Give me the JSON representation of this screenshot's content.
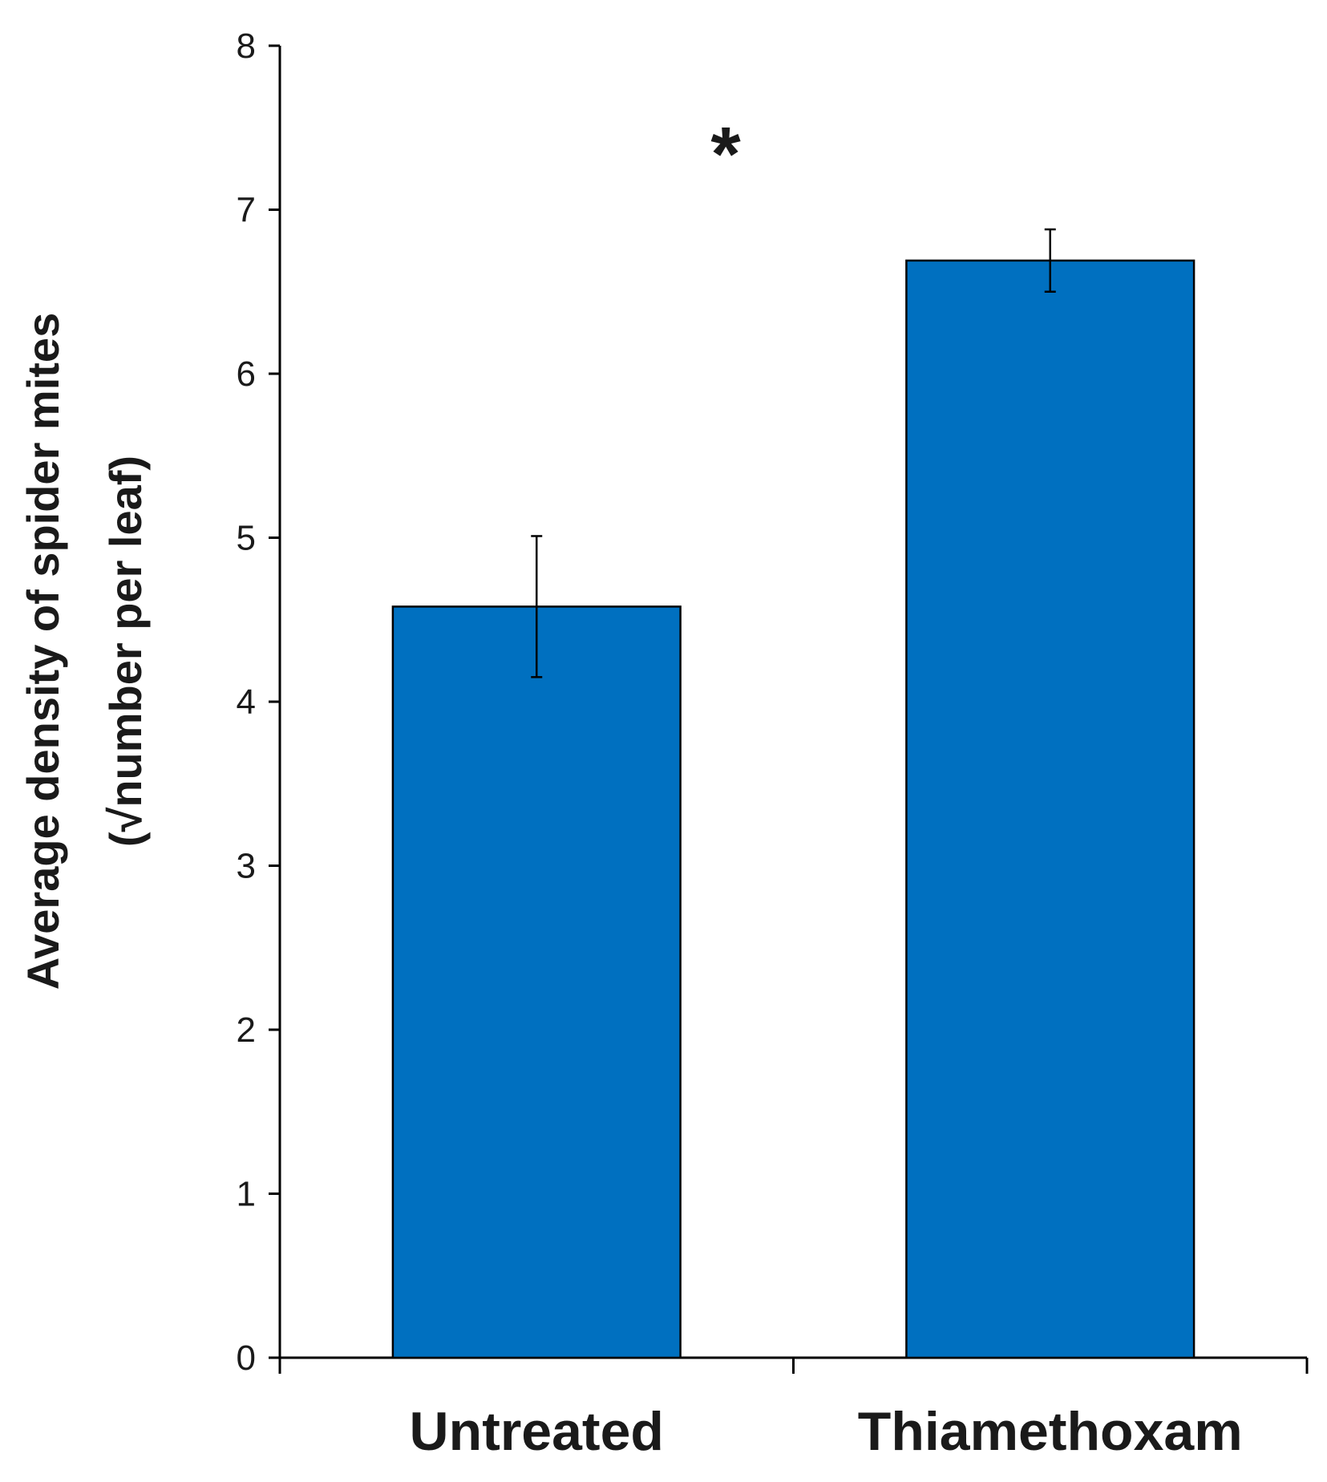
{
  "chart_data": {
    "type": "bar",
    "title": "",
    "xlabel": "",
    "ylabel_lines": [
      "Average density of spider mites",
      "(√number per leaf)"
    ],
    "categories": [
      "Untreated",
      "Thiamethoxam"
    ],
    "values": [
      4.58,
      6.69
    ],
    "error": [
      0.43,
      0.19
    ],
    "ylim": [
      0,
      8
    ],
    "yticks": [
      0,
      1,
      2,
      3,
      4,
      5,
      6,
      7,
      8
    ],
    "annotation": "*",
    "bar_color": "#0070c0",
    "grid": false,
    "legend": "none"
  }
}
